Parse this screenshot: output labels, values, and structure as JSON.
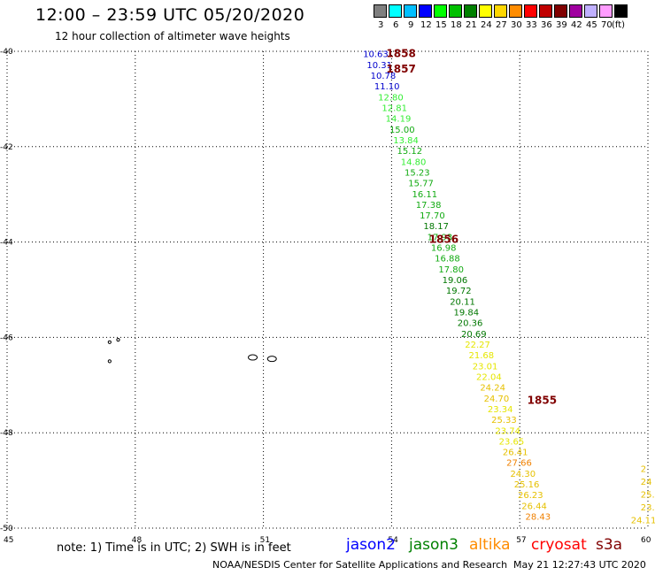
{
  "header": {
    "title": "12:00 – 23:59 UTC 05/20/2020",
    "subtitle": "12 hour collection of altimeter wave heights"
  },
  "color_scale": {
    "items": [
      {
        "label": "3",
        "color": "#7f7f7f"
      },
      {
        "label": "6",
        "color": "#00ffff"
      },
      {
        "label": "9",
        "color": "#00bfff"
      },
      {
        "label": "12",
        "color": "#0000ff"
      },
      {
        "label": "15",
        "color": "#00ff00"
      },
      {
        "label": "18",
        "color": "#00c000"
      },
      {
        "label": "21",
        "color": "#008000"
      },
      {
        "label": "24",
        "color": "#ffff00"
      },
      {
        "label": "27",
        "color": "#ffd700"
      },
      {
        "label": "30",
        "color": "#ff8c00"
      },
      {
        "label": "33",
        "color": "#ff0000"
      },
      {
        "label": "36",
        "color": "#c00000"
      },
      {
        "label": "39",
        "color": "#800000"
      },
      {
        "label": "42",
        "color": "#a000a0"
      },
      {
        "label": "45",
        "color": "#c0b0ff"
      },
      {
        "label": "70",
        "color": "#ff9cff"
      },
      {
        "label": "",
        "color": "#000000"
      }
    ],
    "unit": "(ft)"
  },
  "map": {
    "lon_range": [
      45,
      60
    ],
    "lat_range": [
      -50,
      -40
    ],
    "lon_ticks": [
      "45",
      "48",
      "51",
      "54",
      "57",
      "60"
    ],
    "lat_ticks": [
      "-40",
      "-42",
      "-44",
      "-46",
      "-48",
      "-50"
    ],
    "grid": "dotted",
    "time_labels": [
      {
        "text": "1858",
        "lon": 54.0,
        "lat": -40.03
      },
      {
        "text": "1857",
        "lon": 54.0,
        "lat": -40.35
      },
      {
        "text": "1856",
        "lon": 55.0,
        "lat": -43.92
      },
      {
        "text": "1855",
        "lon": 57.3,
        "lat": -47.3
      }
    ],
    "track_main": {
      "lon_start": 53.6,
      "lat_start": -40.05,
      "lon_end": 57.4,
      "lat_end": -49.75,
      "swh": [
        "10.63",
        "10.31",
        "10.78",
        "11.10",
        "12.80",
        "12.81",
        "14.19",
        "15.00",
        "13.84",
        "15.12",
        "14.80",
        "15.23",
        "15.77",
        "16.11",
        "17.38",
        "17.70",
        "18.17",
        "17.93",
        "16.98",
        "16.88",
        "17.80",
        "19.06",
        "19.72",
        "20.11",
        "19.84",
        "20.36",
        "20.69",
        "22.27",
        "21.68",
        "23.01",
        "22.04",
        "24.24",
        "24.70",
        "23.34",
        "25.33",
        "23.74",
        "23.65",
        "26.41",
        "27.66",
        "24.30",
        "25.16",
        "26.23",
        "26.44",
        "28.43"
      ]
    },
    "track_edge": {
      "lon": 59.85,
      "lat_start": -48.75,
      "lat_end": -49.82,
      "swh": [
        "2",
        "24",
        "25.",
        "23.",
        "24.11"
      ]
    },
    "islands": [
      {
        "name": "small-island-a",
        "lon": 47.4,
        "lat": -46.1
      },
      {
        "name": "small-island-b",
        "lon": 47.6,
        "lat": -46.05
      },
      {
        "name": "small-island-c",
        "lon": 47.4,
        "lat": -46.5
      },
      {
        "name": "island-d",
        "lon": 50.75,
        "lat": -46.42
      },
      {
        "name": "island-e",
        "lon": 51.2,
        "lat": -46.45
      }
    ]
  },
  "footer": {
    "note": "note: 1) Time is in UTC; 2) SWH is in feet",
    "satellites": [
      {
        "name": "jason2",
        "color": "#0000ff"
      },
      {
        "name": "jason3",
        "color": "#008000"
      },
      {
        "name": "altika",
        "color": "#ff8c00"
      },
      {
        "name": "cryosat",
        "color": "#ff0000"
      },
      {
        "name": "s3a",
        "color": "#800000"
      }
    ],
    "credit": "NOAA/NESDIS Center for Satellite Applications and Research",
    "timestamp": "May 21 12:27:43 UTC 2020"
  }
}
